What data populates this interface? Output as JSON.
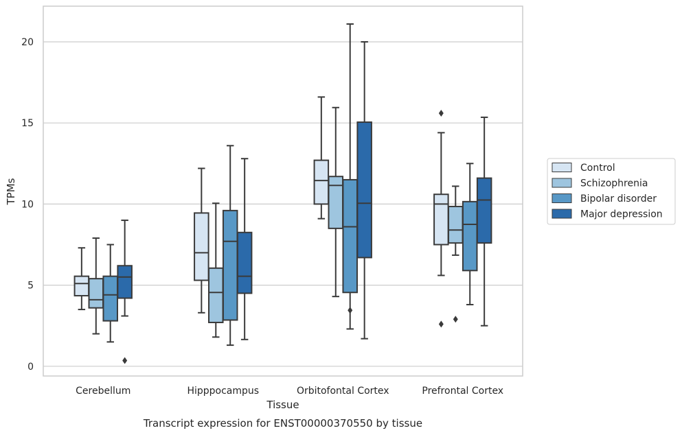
{
  "caption": "Transcript expression for ENST00000370550 by tissue",
  "chart_data": {
    "type": "box",
    "title": "",
    "xlabel": "Tissue",
    "ylabel": "TPMs",
    "ylim": [
      -0.6,
      22.2
    ],
    "yticks": [
      0,
      5,
      10,
      15,
      20
    ],
    "grid": "horizontal",
    "legend_position": "right",
    "categories": [
      "Cerebellum",
      "Hipppocampus",
      "Orbitofontal Cortex",
      "Prefrontal Cortex"
    ],
    "series": [
      {
        "name": "Control",
        "color": "#d6e5f3",
        "boxes": [
          {
            "whisker_low": 3.5,
            "q1": 4.35,
            "median": 5.1,
            "q3": 5.55,
            "whisker_high": 7.3,
            "outliers": []
          },
          {
            "whisker_low": 3.3,
            "q1": 5.3,
            "median": 7.0,
            "q3": 9.45,
            "whisker_high": 12.2,
            "outliers": []
          },
          {
            "whisker_low": 9.1,
            "q1": 10.0,
            "median": 11.45,
            "q3": 12.7,
            "whisker_high": 16.6,
            "outliers": []
          },
          {
            "whisker_low": 5.6,
            "q1": 7.5,
            "median": 10.0,
            "q3": 10.6,
            "whisker_high": 14.4,
            "outliers": [
              2.6,
              15.6
            ]
          }
        ]
      },
      {
        "name": "Schizophrenia",
        "color": "#9ec5df",
        "boxes": [
          {
            "whisker_low": 2.0,
            "q1": 3.6,
            "median": 4.1,
            "q3": 5.4,
            "whisker_high": 7.9,
            "outliers": []
          },
          {
            "whisker_low": 1.8,
            "q1": 2.7,
            "median": 4.55,
            "q3": 6.05,
            "whisker_high": 10.05,
            "outliers": []
          },
          {
            "whisker_low": 4.3,
            "q1": 8.5,
            "median": 11.15,
            "q3": 11.7,
            "whisker_high": 15.95,
            "outliers": []
          },
          {
            "whisker_low": 6.85,
            "q1": 7.6,
            "median": 8.4,
            "q3": 9.85,
            "whisker_high": 11.1,
            "outliers": [
              2.9
            ]
          }
        ]
      },
      {
        "name": "Bipolar disorder",
        "color": "#5898c6",
        "boxes": [
          {
            "whisker_low": 1.5,
            "q1": 2.8,
            "median": 4.4,
            "q3": 5.55,
            "whisker_high": 7.5,
            "outliers": []
          },
          {
            "whisker_low": 1.3,
            "q1": 2.85,
            "median": 7.7,
            "q3": 9.6,
            "whisker_high": 13.6,
            "outliers": []
          },
          {
            "whisker_low": 2.3,
            "q1": 4.55,
            "median": 8.6,
            "q3": 11.5,
            "whisker_high": 21.1,
            "outliers": [
              3.45
            ]
          },
          {
            "whisker_low": 3.8,
            "q1": 5.9,
            "median": 8.75,
            "q3": 10.15,
            "whisker_high": 12.5,
            "outliers": []
          }
        ]
      },
      {
        "name": "Major depression",
        "color": "#2b6aaa",
        "boxes": [
          {
            "whisker_low": 3.1,
            "q1": 4.2,
            "median": 5.5,
            "q3": 6.2,
            "whisker_high": 9.0,
            "outliers": [
              0.35
            ]
          },
          {
            "whisker_low": 1.65,
            "q1": 4.5,
            "median": 5.55,
            "q3": 8.25,
            "whisker_high": 12.8,
            "outliers": []
          },
          {
            "whisker_low": 1.7,
            "q1": 6.7,
            "median": 10.05,
            "q3": 15.05,
            "whisker_high": 20.0,
            "outliers": []
          },
          {
            "whisker_low": 2.5,
            "q1": 7.6,
            "median": 10.25,
            "q3": 11.6,
            "whisker_high": 15.35,
            "outliers": []
          }
        ]
      }
    ]
  }
}
